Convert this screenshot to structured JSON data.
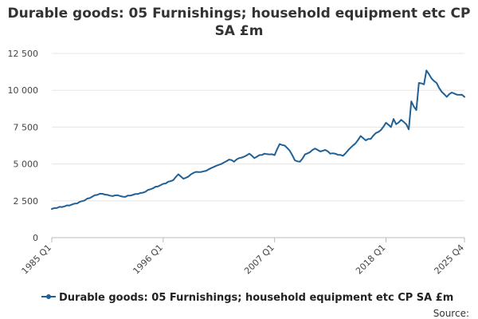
{
  "chart_data": {
    "type": "line",
    "title": "Durable goods: 05 Furnishings; household equipment etc CP SA £m",
    "ylim": [
      0,
      12500
    ],
    "y_ticks": [
      {
        "value": 0,
        "label": "0"
      },
      {
        "value": 2500,
        "label": "2 500"
      },
      {
        "value": 5000,
        "label": "5 000"
      },
      {
        "value": 7500,
        "label": "7 500"
      },
      {
        "value": 10000,
        "label": "10 000"
      },
      {
        "value": 12500,
        "label": "12 500"
      }
    ],
    "x_ticks": [
      {
        "value": 1985.0,
        "label": "1985 Q1"
      },
      {
        "value": 1996.0,
        "label": "1996 Q1"
      },
      {
        "value": 2007.0,
        "label": "2007 Q1"
      },
      {
        "value": 2018.0,
        "label": "2018 Q1"
      },
      {
        "value": 2025.75,
        "label": "2025 Q4"
      }
    ],
    "xlim": [
      1985.0,
      2025.75
    ],
    "grid": "horizontal",
    "legend_position": "bottom",
    "color": "#206095",
    "series": [
      {
        "name": "Durable goods: 05 Furnishings; household equipment etc CP SA £m",
        "points": [
          [
            1985.0,
            1950
          ],
          [
            1986.0,
            2080
          ],
          [
            1987.0,
            2250
          ],
          [
            1988.0,
            2480
          ],
          [
            1989.0,
            2780
          ],
          [
            1989.75,
            2980
          ],
          [
            1990.5,
            2900
          ],
          [
            1991.0,
            2820
          ],
          [
            1991.5,
            2880
          ],
          [
            1992.0,
            2780
          ],
          [
            1993.0,
            2900
          ],
          [
            1994.0,
            3050
          ],
          [
            1995.0,
            3350
          ],
          [
            1996.0,
            3650
          ],
          [
            1996.5,
            3800
          ],
          [
            1997.0,
            3900
          ],
          [
            1997.5,
            4300
          ],
          [
            1998.0,
            4000
          ],
          [
            1998.5,
            4150
          ],
          [
            1999.0,
            4400
          ],
          [
            2000.0,
            4500
          ],
          [
            2001.0,
            4800
          ],
          [
            2002.0,
            5100
          ],
          [
            2002.5,
            5300
          ],
          [
            2003.0,
            5150
          ],
          [
            2003.5,
            5400
          ],
          [
            2004.0,
            5500
          ],
          [
            2004.5,
            5700
          ],
          [
            2005.0,
            5400
          ],
          [
            2005.5,
            5600
          ],
          [
            2006.0,
            5700
          ],
          [
            2006.5,
            5650
          ],
          [
            2007.0,
            5600
          ],
          [
            2007.5,
            6350
          ],
          [
            2008.0,
            6250
          ],
          [
            2008.5,
            5900
          ],
          [
            2009.0,
            5250
          ],
          [
            2009.5,
            5150
          ],
          [
            2010.0,
            5650
          ],
          [
            2010.5,
            5800
          ],
          [
            2011.0,
            6050
          ],
          [
            2011.5,
            5850
          ],
          [
            2012.0,
            5950
          ],
          [
            2012.5,
            5700
          ],
          [
            2013.0,
            5700
          ],
          [
            2013.75,
            5550
          ],
          [
            2014.5,
            6100
          ],
          [
            2015.0,
            6400
          ],
          [
            2015.5,
            6900
          ],
          [
            2016.0,
            6600
          ],
          [
            2016.5,
            6700
          ],
          [
            2017.0,
            7100
          ],
          [
            2017.5,
            7300
          ],
          [
            2018.0,
            7800
          ],
          [
            2018.5,
            7500
          ],
          [
            2018.75,
            8050
          ],
          [
            2019.0,
            7700
          ],
          [
            2019.5,
            8000
          ],
          [
            2020.0,
            7700
          ],
          [
            2020.25,
            7350
          ],
          [
            2020.5,
            9250
          ],
          [
            2020.75,
            8900
          ],
          [
            2021.0,
            8650
          ],
          [
            2021.25,
            10500
          ],
          [
            2021.75,
            10400
          ],
          [
            2022.0,
            11350
          ],
          [
            2022.5,
            10800
          ],
          [
            2023.0,
            10500
          ],
          [
            2023.5,
            9900
          ],
          [
            2024.0,
            9550
          ],
          [
            2024.5,
            9850
          ],
          [
            2025.0,
            9700
          ],
          [
            2025.5,
            9700
          ],
          [
            2025.75,
            9550
          ]
        ]
      }
    ],
    "source_label": "Source:"
  }
}
